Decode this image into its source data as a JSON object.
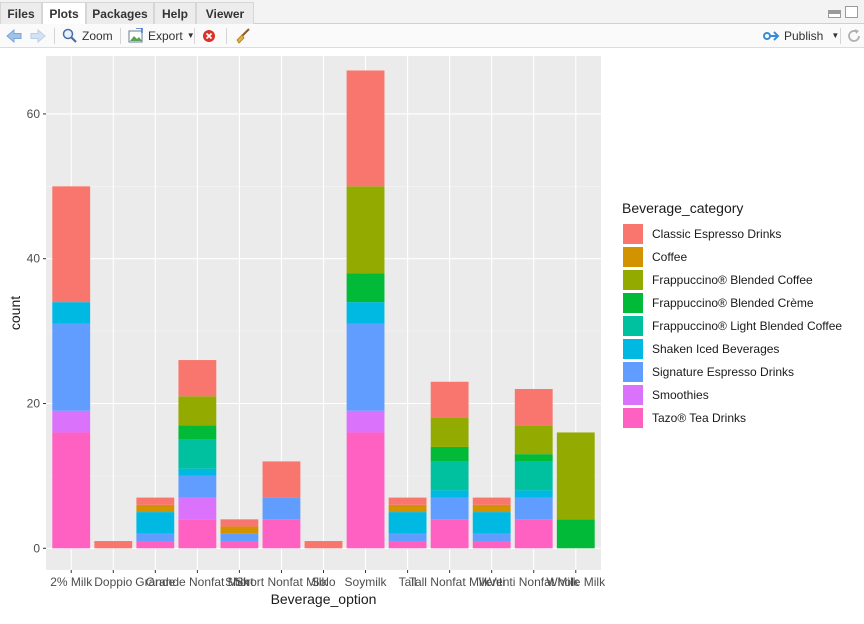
{
  "tabs": [
    {
      "label": "Files",
      "active": false
    },
    {
      "label": "Plots",
      "active": true
    },
    {
      "label": "Packages",
      "active": false
    },
    {
      "label": "Help",
      "active": false
    },
    {
      "label": "Viewer",
      "active": false
    }
  ],
  "toolbar": {
    "zoom_label": "Zoom",
    "export_label": "Export",
    "publish_label": "Publish"
  },
  "chart_data": {
    "type": "bar",
    "stacked": true,
    "xlabel": "Beverage_option",
    "ylabel": "count",
    "ylim": [
      -3,
      68
    ],
    "yticks": [
      0,
      20,
      40,
      60
    ],
    "grid": true,
    "legend_position": "right",
    "legend_title": "Beverage_category",
    "categories": [
      "2% Milk",
      "Doppio",
      "Grande",
      "Grande Nonfat Milk",
      "Short",
      "Short Nonfat Milk",
      "Solo",
      "Soymilk",
      "Tall",
      "Tall Nonfat Milk",
      "Venti",
      "Venti Nonfat Milk",
      "Whole Milk"
    ],
    "series": [
      {
        "name": "Classic Espresso Drinks",
        "color": "#F8766D",
        "values": [
          16,
          1,
          1,
          5,
          1,
          5,
          1,
          16,
          1,
          5,
          1,
          5,
          0
        ]
      },
      {
        "name": "Coffee",
        "color": "#D39200",
        "values": [
          0,
          0,
          1,
          0,
          1,
          0,
          0,
          0,
          1,
          0,
          1,
          0,
          0
        ]
      },
      {
        "name": "Frappuccino® Blended Coffee",
        "color": "#93AA00",
        "values": [
          0,
          0,
          0,
          4,
          0,
          0,
          0,
          12,
          0,
          4,
          0,
          4,
          12
        ]
      },
      {
        "name": "Frappuccino® Blended Crème",
        "color": "#00BA38",
        "values": [
          0,
          0,
          0,
          2,
          0,
          0,
          0,
          4,
          0,
          2,
          0,
          1,
          4
        ]
      },
      {
        "name": "Frappuccino® Light Blended Coffee",
        "color": "#00C19F",
        "values": [
          0,
          0,
          0,
          4,
          0,
          0,
          0,
          0,
          0,
          4,
          0,
          4,
          0
        ]
      },
      {
        "name": "Shaken Iced Beverages",
        "color": "#00B9E3",
        "values": [
          3,
          0,
          3,
          1,
          0,
          0,
          0,
          3,
          3,
          1,
          3,
          1,
          0
        ]
      },
      {
        "name": "Signature Espresso Drinks",
        "color": "#619CFF",
        "values": [
          12,
          0,
          1,
          3,
          1,
          3,
          0,
          12,
          1,
          3,
          1,
          3,
          0
        ]
      },
      {
        "name": "Smoothies",
        "color": "#DB72FB",
        "values": [
          3,
          0,
          0,
          3,
          0,
          0,
          0,
          3,
          0,
          0,
          0,
          0,
          0
        ]
      },
      {
        "name": "Tazo® Tea Drinks",
        "color": "#FF61C3",
        "values": [
          16,
          0,
          1,
          4,
          1,
          4,
          0,
          16,
          1,
          4,
          1,
          4,
          0
        ]
      }
    ]
  }
}
